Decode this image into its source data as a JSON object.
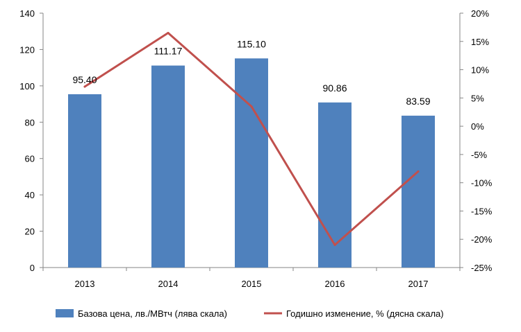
{
  "chart_data": {
    "type": "bar",
    "categories": [
      "2013",
      "2014",
      "2015",
      "2016",
      "2017"
    ],
    "series": [
      {
        "name": "Базова цена, лв./МВтч (лява скала)",
        "type": "bar",
        "axis": "left",
        "color": "#4f81bd",
        "values": [
          95.4,
          111.17,
          115.1,
          90.86,
          83.59
        ],
        "labels": [
          "95.40",
          "111.17",
          "115.10",
          "90.86",
          "83.59"
        ]
      },
      {
        "name": "Годишно изменение, % (дясна скала)",
        "type": "line",
        "axis": "right",
        "color": "#c0504d",
        "values": [
          7,
          16.5,
          3.5,
          -21,
          -8
        ]
      }
    ],
    "y_left": {
      "ylim": [
        0,
        140
      ],
      "ticks": [
        "0",
        "20",
        "40",
        "60",
        "80",
        "100",
        "120",
        "140"
      ]
    },
    "y_right": {
      "ylim": [
        -25,
        20
      ],
      "ticks": [
        "-25%",
        "-20%",
        "-15%",
        "-10%",
        "-5%",
        "0%",
        "5%",
        "10%",
        "15%",
        "20%"
      ]
    },
    "title": "",
    "xlabel": "",
    "ylabel": "",
    "grid": false,
    "legend_position": "bottom"
  }
}
